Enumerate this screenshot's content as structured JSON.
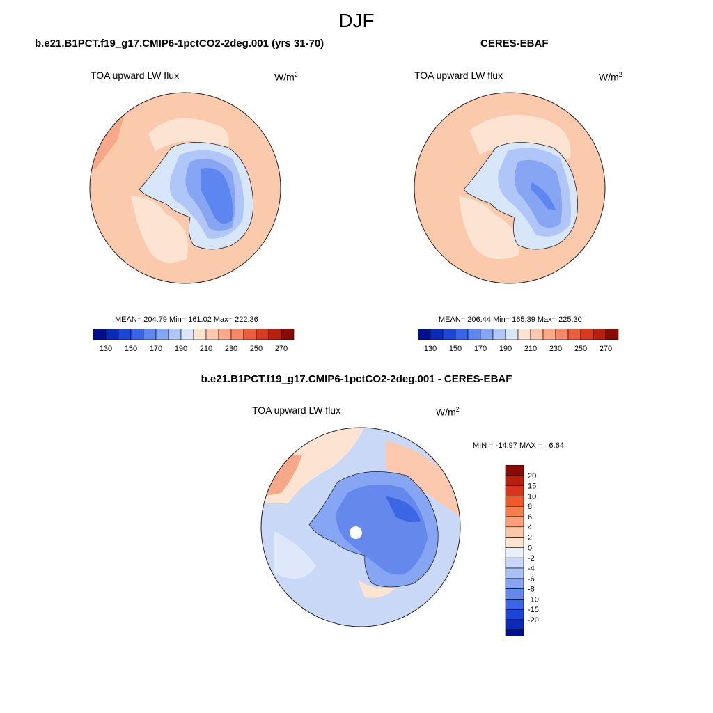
{
  "title": "DJF",
  "panels": {
    "model": {
      "header": "b.e21.B1PCT.f19_g17.CMIP6-1pctCO2-2deg.001 (yrs 31-70)",
      "variable": "TOA upward LW flux",
      "units": "W/m",
      "units_sup": "2",
      "stats": "MEAN= 204.79  Min= 161.02  Max= 222.36"
    },
    "obs": {
      "header": "CERES-EBAF",
      "variable": "TOA upward LW flux",
      "units": "W/m",
      "units_sup": "2",
      "stats": "MEAN= 206.44  Min= 165.39  Max= 225.30"
    },
    "diff": {
      "header": "b.e21.B1PCT.f19_g17.CMIP6-1pctCO2-2deg.001 - CERES-EBAF",
      "variable": "TOA upward LW flux",
      "units": "W/m",
      "units_sup": "2",
      "stats": "MIN = -14.97 MAX =   6.64"
    }
  },
  "colorbar_main": {
    "colors": [
      "#00108c",
      "#0a2ab8",
      "#1c44d6",
      "#3a64e8",
      "#5e86f0",
      "#86a6f4",
      "#b0c6f8",
      "#d8e6fa",
      "#fde4d2",
      "#fcc8ae",
      "#f9a98a",
      "#f48868",
      "#ea5e3e",
      "#d83a20",
      "#b8200e",
      "#8a0a04"
    ],
    "labels": [
      "130",
      "150",
      "170",
      "190",
      "210",
      "230",
      "250",
      "270"
    ]
  },
  "colorbar_diff": {
    "colors": [
      "#8a0a04",
      "#b8200e",
      "#d8361a",
      "#ee5a28",
      "#f47e4c",
      "#f8a07a",
      "#fac6a8",
      "#fde4d2",
      "#eaf0fa",
      "#c8d8f6",
      "#a8c0f4",
      "#86a4f0",
      "#6488ec",
      "#3c66e4",
      "#1c44d6",
      "#0a2ab8",
      "#00108c"
    ],
    "labels": [
      "20",
      "15",
      "10",
      "8",
      "6",
      "4",
      "2",
      "0",
      "-2",
      "-4",
      "-6",
      "-8",
      "-10",
      "-15",
      "-20"
    ]
  },
  "colors": {
    "ocean_warm": "#fbc9ac",
    "warm_light": "#fde4d2",
    "ice_light": "#b0c6f8",
    "ice_mid": "#86a6f4",
    "ice_dark": "#5e86f0",
    "diff_ocean": "#c8d8f6",
    "diff_ocean_light": "#dfe8fa",
    "diff_ice": "#6488ec",
    "diff_ice_dark": "#3c66e4"
  }
}
